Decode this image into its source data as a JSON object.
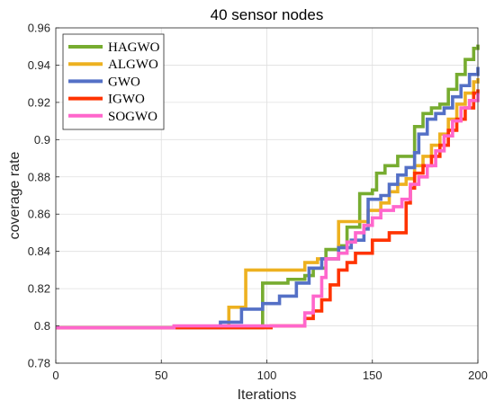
{
  "chart_data": {
    "type": "line",
    "title": "40 sensor nodes",
    "xlabel": "Iterations",
    "ylabel": "coverage rate",
    "xlim": [
      0,
      200
    ],
    "ylim": [
      0.78,
      0.96
    ],
    "xticks": [
      0,
      50,
      100,
      150,
      200
    ],
    "yticks": [
      0.78,
      0.8,
      0.82,
      0.84,
      0.86,
      0.88,
      0.9,
      0.92,
      0.94,
      0.96
    ],
    "xtick_labels": [
      "0",
      "50",
      "100",
      "150",
      "200"
    ],
    "ytick_labels": [
      "0.78",
      "0.8",
      "0.82",
      "0.84",
      "0.86",
      "0.88",
      "0.9",
      "0.92",
      "0.94",
      "0.96"
    ],
    "grid": true,
    "legend_position": "top-left",
    "series": [
      {
        "name": "HAGWO",
        "color": "#77AC30",
        "points": [
          [
            0,
            0.799
          ],
          [
            96,
            0.799
          ],
          [
            98,
            0.823
          ],
          [
            108,
            0.823
          ],
          [
            110,
            0.825
          ],
          [
            118,
            0.827
          ],
          [
            122,
            0.831
          ],
          [
            128,
            0.841
          ],
          [
            134,
            0.843
          ],
          [
            138,
            0.853
          ],
          [
            142,
            0.853
          ],
          [
            144,
            0.871
          ],
          [
            150,
            0.873
          ],
          [
            152,
            0.882
          ],
          [
            156,
            0.886
          ],
          [
            160,
            0.886
          ],
          [
            162,
            0.891
          ],
          [
            168,
            0.891
          ],
          [
            170,
            0.907
          ],
          [
            174,
            0.914
          ],
          [
            178,
            0.917
          ],
          [
            182,
            0.919
          ],
          [
            186,
            0.927
          ],
          [
            190,
            0.935
          ],
          [
            194,
            0.943
          ],
          [
            198,
            0.949
          ],
          [
            200,
            0.951
          ]
        ]
      },
      {
        "name": "ALGWO",
        "color": "#EDB120",
        "points": [
          [
            0,
            0.799
          ],
          [
            80,
            0.799
          ],
          [
            82,
            0.81
          ],
          [
            88,
            0.81
          ],
          [
            90,
            0.83
          ],
          [
            110,
            0.83
          ],
          [
            112,
            0.83
          ],
          [
            118,
            0.834
          ],
          [
            124,
            0.836
          ],
          [
            132,
            0.836
          ],
          [
            134,
            0.856
          ],
          [
            146,
            0.856
          ],
          [
            148,
            0.862
          ],
          [
            154,
            0.866
          ],
          [
            158,
            0.872
          ],
          [
            162,
            0.876
          ],
          [
            166,
            0.879
          ],
          [
            170,
            0.886
          ],
          [
            174,
            0.891
          ],
          [
            178,
            0.897
          ],
          [
            182,
            0.903
          ],
          [
            186,
            0.911
          ],
          [
            190,
            0.919
          ],
          [
            194,
            0.925
          ],
          [
            198,
            0.931
          ],
          [
            200,
            0.933
          ]
        ]
      },
      {
        "name": "GWO",
        "color": "#5470C6",
        "points": [
          [
            0,
            0.799
          ],
          [
            76,
            0.799
          ],
          [
            78,
            0.802
          ],
          [
            86,
            0.802
          ],
          [
            88,
            0.809
          ],
          [
            96,
            0.809
          ],
          [
            98,
            0.812
          ],
          [
            104,
            0.812
          ],
          [
            106,
            0.816
          ],
          [
            112,
            0.816
          ],
          [
            114,
            0.823
          ],
          [
            118,
            0.823
          ],
          [
            120,
            0.831
          ],
          [
            124,
            0.831
          ],
          [
            126,
            0.836
          ],
          [
            132,
            0.836
          ],
          [
            134,
            0.842
          ],
          [
            140,
            0.846
          ],
          [
            146,
            0.852
          ],
          [
            148,
            0.868
          ],
          [
            154,
            0.87
          ],
          [
            158,
            0.876
          ],
          [
            162,
            0.881
          ],
          [
            166,
            0.885
          ],
          [
            170,
            0.893
          ],
          [
            172,
            0.903
          ],
          [
            176,
            0.911
          ],
          [
            180,
            0.914
          ],
          [
            184,
            0.917
          ],
          [
            188,
            0.923
          ],
          [
            192,
            0.929
          ],
          [
            196,
            0.935
          ],
          [
            200,
            0.939
          ]
        ]
      },
      {
        "name": "IGWO",
        "color": "#FF3300",
        "points": [
          [
            0,
            0.799
          ],
          [
            54,
            0.799
          ],
          [
            100,
            0.799
          ],
          [
            102,
            0.8
          ],
          [
            116,
            0.8
          ],
          [
            118,
            0.804
          ],
          [
            122,
            0.808
          ],
          [
            126,
            0.814
          ],
          [
            130,
            0.822
          ],
          [
            134,
            0.83
          ],
          [
            138,
            0.834
          ],
          [
            142,
            0.839
          ],
          [
            148,
            0.839
          ],
          [
            150,
            0.846
          ],
          [
            156,
            0.846
          ],
          [
            158,
            0.85
          ],
          [
            164,
            0.85
          ],
          [
            166,
            0.866
          ],
          [
            168,
            0.874
          ],
          [
            170,
            0.882
          ],
          [
            174,
            0.886
          ],
          [
            178,
            0.891
          ],
          [
            182,
            0.897
          ],
          [
            186,
            0.905
          ],
          [
            190,
            0.911
          ],
          [
            194,
            0.917
          ],
          [
            198,
            0.925
          ],
          [
            200,
            0.927
          ]
        ]
      },
      {
        "name": "SOGWO",
        "color": "#FF66CC",
        "points": [
          [
            0,
            0.799
          ],
          [
            54,
            0.799
          ],
          [
            56,
            0.8
          ],
          [
            116,
            0.8
          ],
          [
            118,
            0.807
          ],
          [
            122,
            0.816
          ],
          [
            126,
            0.826
          ],
          [
            128,
            0.836
          ],
          [
            134,
            0.839
          ],
          [
            138,
            0.845
          ],
          [
            142,
            0.85
          ],
          [
            146,
            0.854
          ],
          [
            150,
            0.858
          ],
          [
            154,
            0.862
          ],
          [
            160,
            0.864
          ],
          [
            164,
            0.868
          ],
          [
            168,
            0.876
          ],
          [
            172,
            0.88
          ],
          [
            176,
            0.886
          ],
          [
            180,
            0.894
          ],
          [
            184,
            0.902
          ],
          [
            188,
            0.91
          ],
          [
            192,
            0.917
          ],
          [
            196,
            0.921
          ],
          [
            200,
            0.925
          ]
        ]
      }
    ]
  }
}
